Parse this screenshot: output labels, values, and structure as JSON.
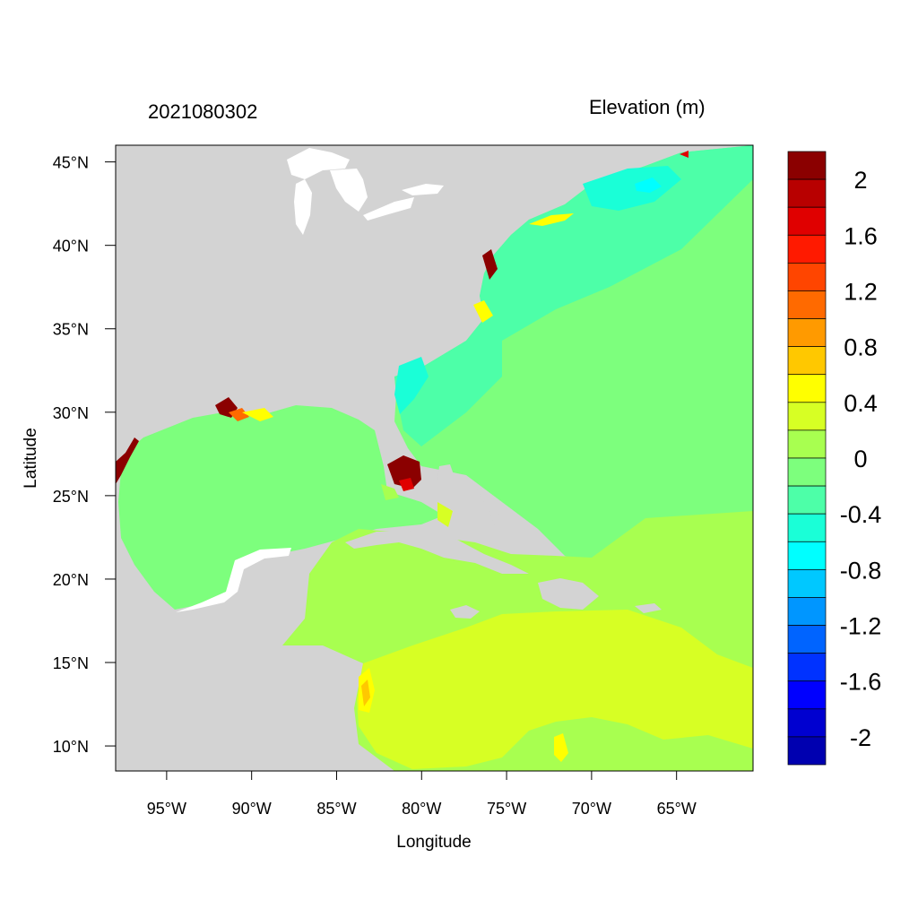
{
  "title_left": "2021080302",
  "title_right": "Elevation (m)",
  "colors": {
    "land": "#d3d3d3",
    "background": "#ffffff"
  },
  "chart_data": {
    "type": "heatmap",
    "xlabel": "Longitude",
    "ylabel": "Latitude",
    "xlim": [
      -98,
      -60.5
    ],
    "ylim": [
      8.5,
      46
    ],
    "x_ticks": [
      {
        "value": -95,
        "label": "95°W"
      },
      {
        "value": -90,
        "label": "90°W"
      },
      {
        "value": -85,
        "label": "85°W"
      },
      {
        "value": -80,
        "label": "80°W"
      },
      {
        "value": -75,
        "label": "75°W"
      },
      {
        "value": -70,
        "label": "70°W"
      },
      {
        "value": -65,
        "label": "65°W"
      }
    ],
    "y_ticks": [
      {
        "value": 45,
        "label": "45°N"
      },
      {
        "value": 40,
        "label": "40°N"
      },
      {
        "value": 35,
        "label": "35°N"
      },
      {
        "value": 30,
        "label": "30°N"
      },
      {
        "value": 25,
        "label": "25°N"
      },
      {
        "value": 20,
        "label": "20°N"
      },
      {
        "value": 15,
        "label": "15°N"
      },
      {
        "value": 10,
        "label": "10°N"
      }
    ],
    "colorbar": {
      "label_values": [
        "2",
        "1.6",
        "1.2",
        "0.8",
        "0.4",
        "0",
        "-0.4",
        "-0.8",
        "-1.2",
        "-1.6",
        "-2"
      ],
      "colors_top_to_bottom": [
        "#8b0000",
        "#b80000",
        "#e00000",
        "#ff1a00",
        "#ff4500",
        "#ff6a00",
        "#ff9a00",
        "#ffc800",
        "#ffff00",
        "#d7ff24",
        "#a8ff50",
        "#7dff7d",
        "#4dffa8",
        "#1affd7",
        "#00ffff",
        "#00c8ff",
        "#0096ff",
        "#0064ff",
        "#0032ff",
        "#0000ff",
        "#0000d0",
        "#0000b0"
      ]
    }
  }
}
